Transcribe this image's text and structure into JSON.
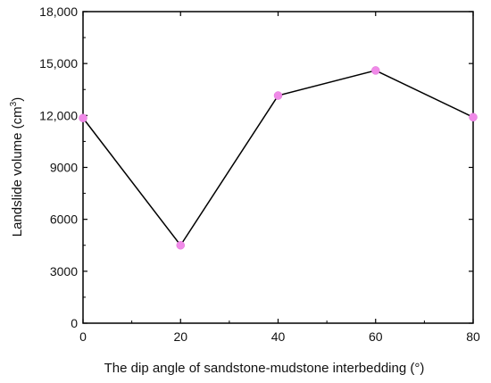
{
  "chart_data": {
    "type": "line",
    "xlabel": "The dip angle of sandstone-mudstone interbedding (°)",
    "ylabel_main": "Landslide volume (cm",
    "ylabel_sup": "3",
    "ylabel_close": ")",
    "x": [
      0,
      20,
      40,
      60,
      80
    ],
    "series": [
      {
        "values": [
          11850,
          4500,
          13150,
          14600,
          11900
        ]
      }
    ],
    "xlim": [
      0,
      80
    ],
    "ylim": [
      0,
      18000
    ],
    "xticks": [
      0,
      20,
      40,
      60,
      80
    ],
    "yticks": [
      0,
      3000,
      6000,
      9000,
      12000,
      15000,
      18000
    ],
    "xtick_labels": [
      "0",
      "20",
      "40",
      "60",
      "80"
    ],
    "ytick_labels": [
      "0",
      "3000",
      "6000",
      "9000",
      "12,000",
      "15,000",
      "18,000"
    ],
    "grid": false,
    "line_color": "#000000",
    "marker_color": "#f08ae8"
  }
}
